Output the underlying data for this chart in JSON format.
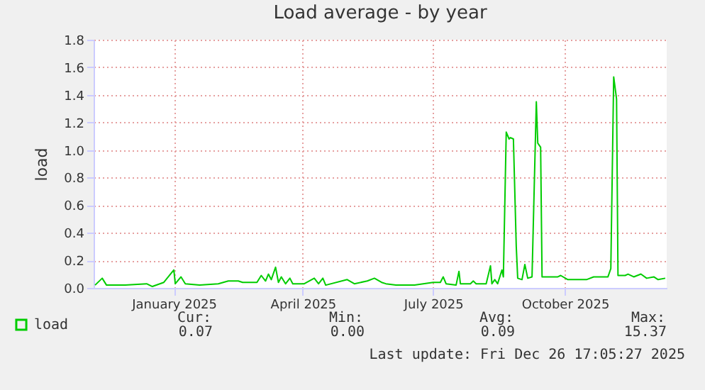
{
  "chart_data": {
    "type": "line",
    "title": "Load average - by year",
    "ylabel": "load",
    "x": [
      "2024-11-22",
      "2024-11-27",
      "2024-11-30",
      "2024-12-13",
      "2024-12-28",
      "2025-01-01",
      "2025-01-09",
      "2025-01-16",
      "2025-01-17",
      "2025-01-21",
      "2025-01-24",
      "2025-02-03",
      "2025-02-16",
      "2025-02-23",
      "2025-03-02",
      "2025-03-05",
      "2025-03-15",
      "2025-03-18",
      "2025-03-21",
      "2025-03-23",
      "2025-03-25",
      "2025-03-28",
      "2025-03-30",
      "2025-04-01",
      "2025-04-04",
      "2025-04-07",
      "2025-04-09",
      "2025-04-17",
      "2025-04-24",
      "2025-04-27",
      "2025-04-30",
      "2025-05-02",
      "2025-05-17",
      "2025-05-22",
      "2025-05-31",
      "2025-06-05",
      "2025-06-10",
      "2025-06-13",
      "2025-06-20",
      "2025-07-03",
      "2025-07-16",
      "2025-07-21",
      "2025-07-23",
      "2025-07-25",
      "2025-08-01",
      "2025-08-03",
      "2025-08-04",
      "2025-08-11",
      "2025-08-13",
      "2025-08-15",
      "2025-08-22",
      "2025-08-25",
      "2025-08-26",
      "2025-08-28",
      "2025-08-30",
      "2025-09-02",
      "2025-09-03",
      "2025-09-05",
      "2025-09-07",
      "2025-09-08",
      "2025-09-10",
      "2025-09-12",
      "2025-09-13",
      "2025-09-16",
      "2025-09-18",
      "2025-09-20",
      "2025-09-23",
      "2025-09-26",
      "2025-09-27",
      "2025-09-29",
      "2025-09-30",
      "2025-10-11",
      "2025-10-13",
      "2025-10-18",
      "2025-10-31",
      "2025-11-05",
      "2025-11-15",
      "2025-11-17",
      "2025-11-19",
      "2025-11-21",
      "2025-11-22",
      "2025-11-27",
      "2025-11-29",
      "2025-12-03",
      "2025-12-08",
      "2025-12-12",
      "2025-12-17",
      "2025-12-20",
      "2025-12-25"
    ],
    "series": [
      {
        "name": "load",
        "color": "#00cc00",
        "values": [
          0.02,
          0.07,
          0.02,
          0.02,
          0.03,
          0.01,
          0.04,
          0.13,
          0.03,
          0.08,
          0.03,
          0.02,
          0.03,
          0.05,
          0.05,
          0.04,
          0.04,
          0.09,
          0.05,
          0.1,
          0.06,
          0.15,
          0.04,
          0.08,
          0.03,
          0.07,
          0.03,
          0.03,
          0.07,
          0.03,
          0.07,
          0.02,
          0.06,
          0.03,
          0.05,
          0.07,
          0.04,
          0.03,
          0.02,
          0.02,
          0.04,
          0.04,
          0.08,
          0.03,
          0.02,
          0.12,
          0.03,
          0.03,
          0.05,
          0.03,
          0.03,
          0.16,
          0.03,
          0.06,
          0.03,
          0.13,
          0.08,
          1.13,
          1.08,
          1.09,
          1.08,
          0.3,
          0.07,
          0.06,
          0.17,
          0.07,
          0.08,
          1.35,
          1.05,
          1.02,
          0.08,
          0.08,
          0.09,
          0.06,
          0.06,
          0.08,
          0.08,
          0.14,
          1.53,
          1.37,
          0.09,
          0.09,
          0.1,
          0.08,
          0.1,
          0.07,
          0.08,
          0.06,
          0.07
        ]
      }
    ],
    "xlim": [
      "2024-11-21",
      "2025-12-26"
    ],
    "xticks": [
      {
        "value": "2025-01-16",
        "label": "January 2025"
      },
      {
        "value": "2025-04-16",
        "label": "April 2025"
      },
      {
        "value": "2025-07-16",
        "label": "July 2025"
      },
      {
        "value": "2025-10-16",
        "label": "October 2025"
      }
    ],
    "ylim": [
      0,
      1.8
    ],
    "yticks": [
      {
        "value": 0,
        "label": "0.0"
      },
      {
        "value": 0.2,
        "label": "0.2"
      },
      {
        "value": 0.4,
        "label": "0.4"
      },
      {
        "value": 0.6,
        "label": "0.6"
      },
      {
        "value": 0.8,
        "label": "0.8"
      },
      {
        "value": 1.0,
        "label": "1.0"
      },
      {
        "value": 1.2,
        "label": "1.2"
      },
      {
        "value": 1.4,
        "label": "1.4"
      },
      {
        "value": 1.6,
        "label": "1.6"
      },
      {
        "value": 1.8,
        "label": "1.8"
      }
    ],
    "grid": true,
    "legend": "bottom left",
    "marker": "none",
    "line_style": "solid",
    "annotations": [
      "Cur:",
      "0.07",
      "Min:",
      "0.00",
      "Avg:",
      "0.09",
      "Max:",
      "15.37",
      "Last update: Fri Dec 26 17:05:27 2025"
    ]
  }
}
